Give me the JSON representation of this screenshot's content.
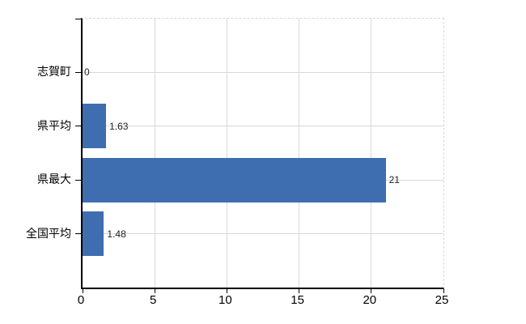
{
  "chart_data": {
    "type": "bar",
    "orientation": "horizontal",
    "title": "",
    "xlabel": "",
    "ylabel": "",
    "categories": [
      "志賀町",
      "県平均",
      "県最大",
      "全国平均"
    ],
    "values": [
      0,
      1.63,
      21,
      1.48
    ],
    "value_labels": [
      "0",
      "1.63",
      "21",
      "1.48"
    ],
    "xlim": [
      0,
      25
    ],
    "xticks": [
      0,
      5,
      10,
      15,
      20,
      25
    ],
    "xtick_labels": [
      "0",
      "5",
      "10",
      "15",
      "20",
      "25"
    ],
    "grid": true,
    "legend": null,
    "colors": {
      "bar": "#3f6eb0",
      "grid": "#d8d8d8",
      "axis": "#000000",
      "text": "#000000",
      "value_text": "#222222",
      "background": "#ffffff"
    }
  }
}
